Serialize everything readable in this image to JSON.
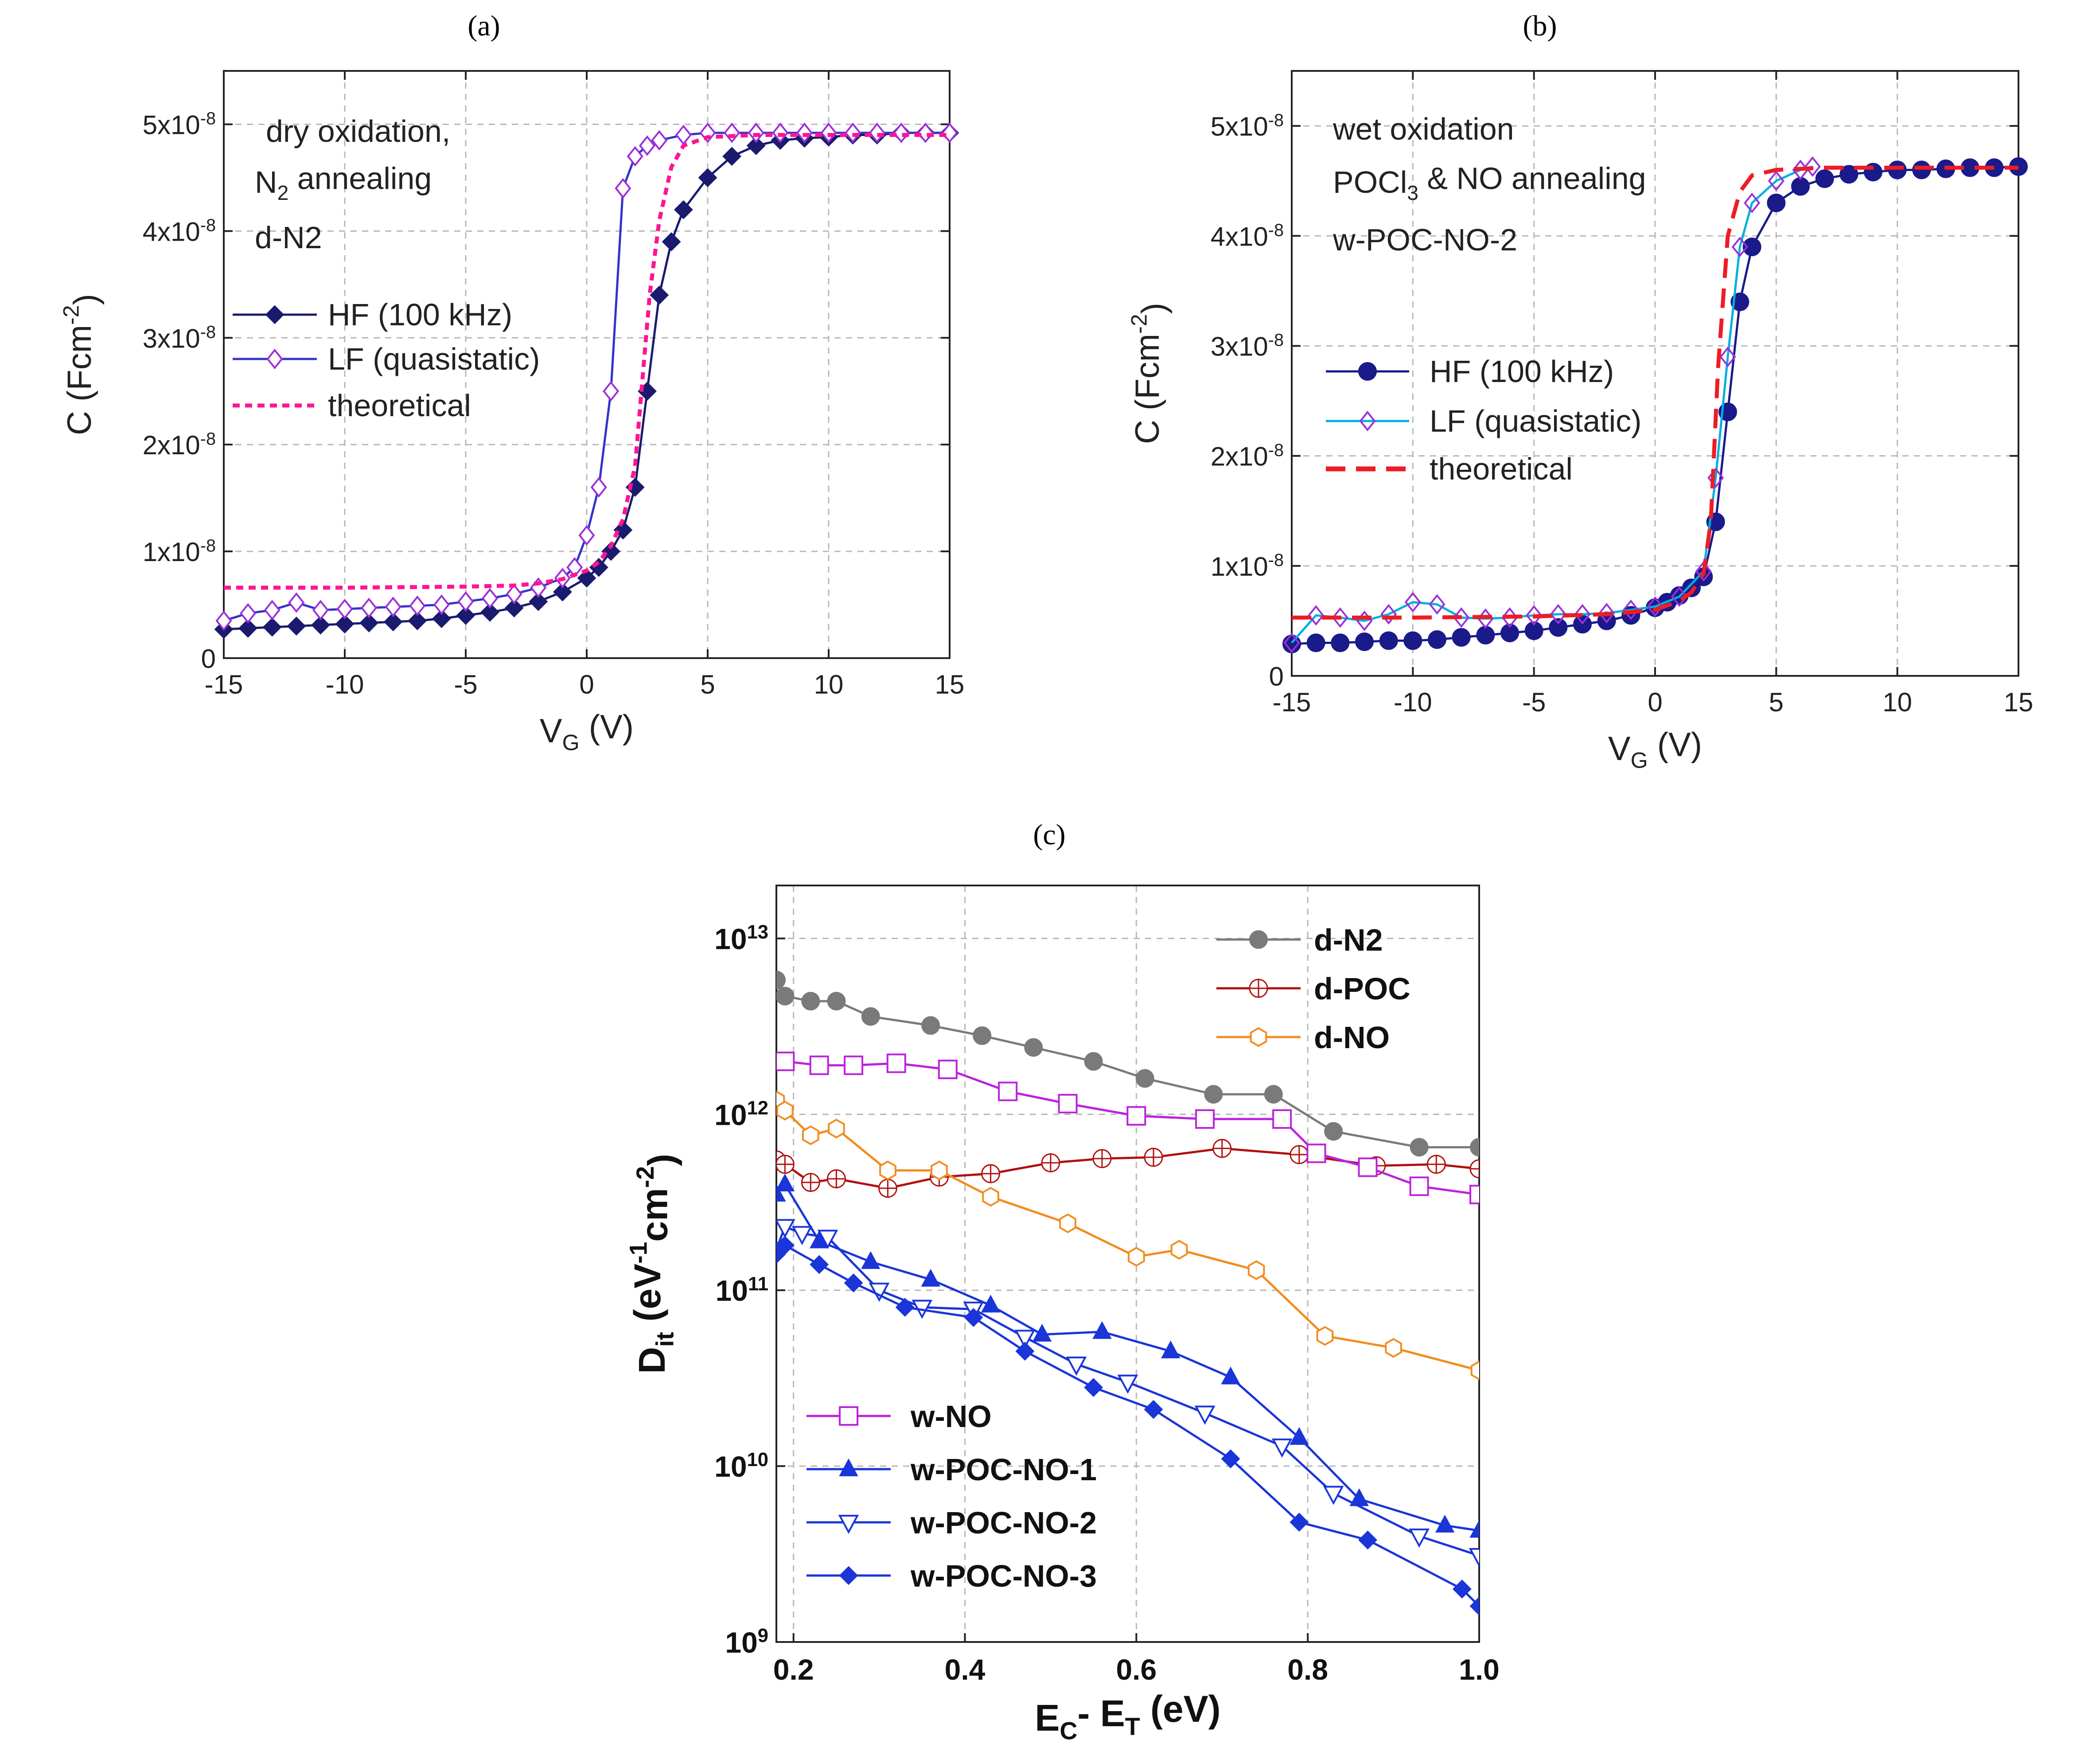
{
  "panels": {
    "a": {
      "label": "(a)"
    },
    "b": {
      "label": "(b)"
    },
    "c": {
      "label": "(c)"
    }
  },
  "chart_data": [
    {
      "id": "a",
      "type": "line",
      "title": "(a)",
      "xlabel": "V",
      "xlabel_sub": "G",
      "xlabel_unit": " (V)",
      "ylabel": "C (Fcm",
      "ylabel_sup": "-2",
      "ylabel_end": ")",
      "xlim": [
        -15,
        15
      ],
      "ylim": [
        0,
        5.5e-08
      ],
      "xticks": [
        -15,
        -10,
        -5,
        0,
        5,
        10,
        15
      ],
      "yticks": [
        {
          "value": 0,
          "label": "0"
        },
        {
          "value": 1e-08,
          "label": "1x10",
          "exp": "-8"
        },
        {
          "value": 2e-08,
          "label": "2x10",
          "exp": "-8"
        },
        {
          "value": 3e-08,
          "label": "3x10",
          "exp": "-8"
        },
        {
          "value": 4e-08,
          "label": "4x10",
          "exp": "-8"
        },
        {
          "value": 5e-08,
          "label": "5x10",
          "exp": "-8"
        }
      ],
      "annotation": {
        "line1": "dry oxidation,",
        "line2a": "N",
        "line2sub": "2",
        "line2b": "  annealing",
        "line3": "d-N2"
      },
      "legend": [
        "HF (100 kHz)",
        "LF (quasistatic)",
        "theoretical"
      ],
      "series": [
        {
          "name": "HF (100 kHz)",
          "color": "#1a1a6e",
          "marker": "diamond",
          "x": [
            -15,
            -14,
            -13,
            -12,
            -11,
            -10,
            -9,
            -8,
            -7,
            -6,
            -5,
            -4,
            -3,
            -2,
            -1,
            0,
            0.5,
            1,
            1.5,
            2,
            2.5,
            3,
            3.5,
            4,
            5,
            6,
            7,
            8,
            9,
            10,
            11,
            12,
            13,
            14,
            15
          ],
          "y": [
            2.7e-09,
            2.8e-09,
            2.9e-09,
            3e-09,
            3.1e-09,
            3.2e-09,
            3.3e-09,
            3.4e-09,
            3.5e-09,
            3.7e-09,
            4e-09,
            4.3e-09,
            4.7e-09,
            5.3e-09,
            6.2e-09,
            7.5e-09,
            8.5e-09,
            1e-08,
            1.2e-08,
            1.6e-08,
            2.5e-08,
            3.4e-08,
            3.9e-08,
            4.2e-08,
            4.5e-08,
            4.7e-08,
            4.8e-08,
            4.85e-08,
            4.87e-08,
            4.88e-08,
            4.9e-08,
            4.9e-08,
            4.92e-08,
            4.92e-08,
            4.92e-08
          ]
        },
        {
          "name": "LF (quasistatic)",
          "color": "#3333cc",
          "marker": "open-diamond",
          "x": [
            -15,
            -14,
            -13,
            -12,
            -11,
            -10,
            -9,
            -8,
            -7,
            -6,
            -5,
            -4,
            -3,
            -2,
            -1,
            -0.5,
            0,
            0.5,
            1,
            1.5,
            2,
            2.5,
            3,
            4,
            5,
            6,
            7,
            8,
            9,
            10,
            11,
            12,
            13,
            14,
            15
          ],
          "y": [
            3.5e-09,
            4.2e-09,
            4.5e-09,
            5.2e-09,
            4.5e-09,
            4.6e-09,
            4.7e-09,
            4.8e-09,
            4.9e-09,
            5e-09,
            5.3e-09,
            5.6e-09,
            6e-09,
            6.6e-09,
            7.5e-09,
            8.5e-09,
            1.15e-08,
            1.6e-08,
            2.5e-08,
            4.4e-08,
            4.7e-08,
            4.8e-08,
            4.85e-08,
            4.9e-08,
            4.92e-08,
            4.92e-08,
            4.92e-08,
            4.92e-08,
            4.92e-08,
            4.92e-08,
            4.92e-08,
            4.92e-08,
            4.92e-08,
            4.92e-08,
            4.92e-08
          ]
        },
        {
          "name": "theoretical",
          "color": "#ff1493",
          "marker": "none",
          "dash": "dotted",
          "x": [
            -15,
            -10,
            -5,
            -3,
            -2,
            -1,
            0,
            0.5,
            1,
            1.5,
            2,
            2.3,
            2.6,
            3,
            3.5,
            4,
            5,
            7,
            10,
            15
          ],
          "y": [
            6.6e-09,
            6.6e-09,
            6.7e-09,
            6.8e-09,
            7e-09,
            7.4e-09,
            8.2e-09,
            9e-09,
            1.05e-08,
            1.3e-08,
            1.8e-08,
            2.6e-08,
            3.4e-08,
            4.1e-08,
            4.6e-08,
            4.8e-08,
            4.88e-08,
            4.9e-08,
            4.9e-08,
            4.9e-08
          ]
        }
      ]
    },
    {
      "id": "b",
      "type": "line",
      "title": "(b)",
      "xlabel": "V",
      "xlabel_sub": "G",
      "xlabel_unit": " (V)",
      "ylabel": "C (Fcm",
      "ylabel_sup": "-2",
      "ylabel_end": ")",
      "xlim": [
        -15,
        15
      ],
      "ylim": [
        0,
        5.5e-08
      ],
      "xticks": [
        -15,
        -10,
        -5,
        0,
        5,
        10,
        15
      ],
      "yticks": [
        {
          "value": 0,
          "label": "0"
        },
        {
          "value": 1e-08,
          "label": "1x10",
          "exp": "-8"
        },
        {
          "value": 2e-08,
          "label": "2x10",
          "exp": "-8"
        },
        {
          "value": 3e-08,
          "label": "3x10",
          "exp": "-8"
        },
        {
          "value": 4e-08,
          "label": "4x10",
          "exp": "-8"
        },
        {
          "value": 5e-08,
          "label": "5x10",
          "exp": "-8"
        }
      ],
      "annotation": {
        "line1": "wet oxidation",
        "line2a": "POCl",
        "line2sub": "3",
        "line2b": " & NO annealing",
        "line3": "w-POC-NO-2"
      },
      "legend": [
        "HF (100 kHz)",
        "LF (quasistatic)",
        "theoretical"
      ],
      "series": [
        {
          "name": "HF (100 kHz)",
          "color": "#1a1a8a",
          "marker": "circle",
          "x": [
            -15,
            -14,
            -13,
            -12,
            -11,
            -10,
            -9,
            -8,
            -7,
            -6,
            -5,
            -4,
            -3,
            -2,
            -1,
            0,
            0.5,
            1,
            1.5,
            2,
            2.5,
            3,
            3.5,
            4,
            5,
            6,
            7,
            8,
            9,
            10,
            11,
            12,
            13,
            14,
            15
          ],
          "y": [
            2.9e-09,
            3e-09,
            3e-09,
            3.1e-09,
            3.2e-09,
            3.2e-09,
            3.3e-09,
            3.5e-09,
            3.7e-09,
            3.9e-09,
            4.1e-09,
            4.4e-09,
            4.7e-09,
            5e-09,
            5.5e-09,
            6.2e-09,
            6.7e-09,
            7.3e-09,
            8e-09,
            9e-09,
            1.4e-08,
            2.4e-08,
            3.4e-08,
            3.9e-08,
            4.3e-08,
            4.45e-08,
            4.52e-08,
            4.56e-08,
            4.58e-08,
            4.6e-08,
            4.6e-08,
            4.61e-08,
            4.62e-08,
            4.62e-08,
            4.63e-08
          ]
        },
        {
          "name": "LF (quasistatic)",
          "color": "#00b0e0",
          "marker": "open-diamond-purple",
          "x": [
            -15,
            -14,
            -13,
            -12,
            -11,
            -10,
            -9,
            -8,
            -7,
            -6,
            -5,
            -4,
            -3,
            -2,
            -1,
            0,
            1,
            2,
            2.5,
            3,
            3.5,
            4,
            5,
            6,
            6.5
          ],
          "y": [
            3e-09,
            5.5e-09,
            5.3e-09,
            5e-09,
            5.6e-09,
            6.7e-09,
            6.5e-09,
            5.3e-09,
            5.2e-09,
            5.3e-09,
            5.5e-09,
            5.6e-09,
            5.6e-09,
            5.7e-09,
            6e-09,
            6.3e-09,
            7.2e-09,
            9.5e-09,
            1.8e-08,
            2.9e-08,
            3.9e-08,
            4.3e-08,
            4.5e-08,
            4.6e-08,
            4.63e-08
          ]
        },
        {
          "name": "theoretical",
          "color": "#ee1c24",
          "marker": "none",
          "dash": "dashed",
          "x": [
            -15,
            -10,
            -5,
            -2,
            0,
            1,
            1.5,
            2,
            2.3,
            2.6,
            3,
            3.5,
            4,
            5,
            7,
            10,
            15
          ],
          "y": [
            5.3e-09,
            5.3e-09,
            5.4e-09,
            5.6e-09,
            6e-09,
            6.8e-09,
            7.6e-09,
            9.3e-09,
            1.4e-08,
            2.8e-08,
            4e-08,
            4.4e-08,
            4.55e-08,
            4.6e-08,
            4.62e-08,
            4.62e-08,
            4.62e-08
          ]
        }
      ]
    },
    {
      "id": "c",
      "type": "line",
      "title": "(c)",
      "xlabel": "E",
      "xlabel_sub1": "C",
      "xlabel_mid": "- E",
      "xlabel_sub2": "T",
      "xlabel_unit": " (eV)",
      "ylabel": "D",
      "ylabel_sub": "it",
      "ylabel_mid": " (eV",
      "ylabel_sup1": "-1",
      "ylabel_mid2": "cm",
      "ylabel_sup2": "-2",
      "ylabel_end": ")",
      "xlim": [
        0.18,
        1.0
      ],
      "ylim": [
        1000000000.0,
        20000000000000.0
      ],
      "yscale": "log",
      "xticks": [
        "0.2",
        "0.4",
        "0.6",
        "0.8",
        "1.0"
      ],
      "yticks": [
        {
          "value": 1000000000.0,
          "base": "10",
          "exp": "9"
        },
        {
          "value": 10000000000.0,
          "base": "10",
          "exp": "10"
        },
        {
          "value": 100000000000.0,
          "base": "10",
          "exp": "11"
        },
        {
          "value": 1000000000000.0,
          "base": "10",
          "exp": "12"
        },
        {
          "value": 10000000000000.0,
          "base": "10",
          "exp": "13"
        }
      ],
      "legend_top": [
        "d-N2",
        "d-POC",
        "d-NO"
      ],
      "legend_bottom": [
        "w-NO",
        "w-POC-NO-1",
        "w-POC-NO-2",
        "w-POC-NO-3"
      ],
      "series": [
        {
          "name": "d-N2",
          "color": "#7a7a7a",
          "marker": "circle",
          "x": [
            0.18,
            0.19,
            0.22,
            0.25,
            0.29,
            0.36,
            0.42,
            0.48,
            0.55,
            0.61,
            0.69,
            0.76,
            0.83,
            0.93,
            1.0
          ],
          "y": [
            5800000000000.0,
            4700000000000.0,
            4400000000000.0,
            4400000000000.0,
            3600000000000.0,
            3200000000000.0,
            2800000000000.0,
            2400000000000.0,
            2000000000000.0,
            1600000000000.0,
            1300000000000.0,
            1300000000000.0,
            800000000000.0,
            650000000000.0,
            650000000000.0
          ]
        },
        {
          "name": "d-POC",
          "color": "#b01010",
          "marker": "open-circle-cross",
          "x": [
            0.18,
            0.19,
            0.22,
            0.25,
            0.31,
            0.37,
            0.43,
            0.5,
            0.56,
            0.62,
            0.7,
            0.79,
            0.88,
            0.95,
            1.0
          ],
          "y": [
            550000000000.0,
            520000000000.0,
            410000000000.0,
            430000000000.0,
            380000000000.0,
            440000000000.0,
            460000000000.0,
            530000000000.0,
            560000000000.0,
            570000000000.0,
            640000000000.0,
            590000000000.0,
            510000000000.0,
            520000000000.0,
            490000000000.0
          ]
        },
        {
          "name": "d-NO",
          "color": "#f28c1e",
          "marker": "open-hexagon",
          "x": [
            0.18,
            0.19,
            0.22,
            0.25,
            0.31,
            0.37,
            0.43,
            0.52,
            0.6,
            0.65,
            0.74,
            0.82,
            0.9,
            1.0
          ],
          "y": [
            1200000000000.0,
            1050000000000.0,
            760000000000.0,
            830000000000.0,
            480000000000.0,
            480000000000.0,
            340000000000.0,
            240000000000.0,
            155000000000.0,
            170000000000.0,
            130000000000.0,
            55000000000.0,
            47000000000.0,
            35000000000.0
          ]
        },
        {
          "name": "w-NO",
          "color": "#bb22dd",
          "marker": "open-square",
          "x": [
            0.19,
            0.23,
            0.27,
            0.32,
            0.38,
            0.45,
            0.52,
            0.6,
            0.68,
            0.77,
            0.81,
            0.87,
            0.93,
            1.0
          ],
          "y": [
            2000000000000.0,
            1900000000000.0,
            1900000000000.0,
            1950000000000.0,
            1800000000000.0,
            1350000000000.0,
            1150000000000.0,
            980000000000.0,
            940000000000.0,
            940000000000.0,
            600000000000.0,
            500000000000.0,
            390000000000.0,
            350000000000.0
          ]
        },
        {
          "name": "w-POC-NO-1",
          "color": "#1a35d8",
          "marker": "triangle",
          "x": [
            0.18,
            0.19,
            0.23,
            0.29,
            0.36,
            0.43,
            0.49,
            0.56,
            0.64,
            0.71,
            0.79,
            0.86,
            0.96,
            1.0
          ],
          "y": [
            350000000000.0,
            400000000000.0,
            190000000000.0,
            145000000000.0,
            115000000000.0,
            82000000000.0,
            56000000000.0,
            58000000000.0,
            45000000000.0,
            32000000000.0,
            14500000000.0,
            6500000000.0,
            4600000000.0,
            4300000000.0
          ]
        },
        {
          "name": "w-POC-NO-2",
          "color": "#1a35d8",
          "marker": "open-triangle-down",
          "x": [
            0.18,
            0.19,
            0.21,
            0.24,
            0.3,
            0.35,
            0.41,
            0.47,
            0.53,
            0.59,
            0.68,
            0.77,
            0.83,
            0.93,
            1.0
          ],
          "y": [
            170000000000.0,
            230000000000.0,
            210000000000.0,
            200000000000.0,
            100000000000.0,
            80000000000.0,
            78000000000.0,
            54000000000.0,
            38000000000.0,
            30000000000.0,
            20000000000.0,
            13000000000.0,
            7000000000.0,
            4000000000.0,
            3100000000.0
          ]
        },
        {
          "name": "w-POC-NO-3",
          "color": "#1a35d8",
          "marker": "diamond",
          "x": [
            0.18,
            0.19,
            0.23,
            0.27,
            0.33,
            0.41,
            0.47,
            0.55,
            0.62,
            0.71,
            0.79,
            0.87,
            0.98,
            1.0
          ],
          "y": [
            160000000000.0,
            180000000000.0,
            140000000000.0,
            110000000000.0,
            80000000000.0,
            70000000000.0,
            45000000000.0,
            28000000000.0,
            21000000000.0,
            11000000000.0,
            4800000000.0,
            3800000000.0,
            2000000000.0,
            1600000000.0
          ]
        }
      ]
    }
  ]
}
